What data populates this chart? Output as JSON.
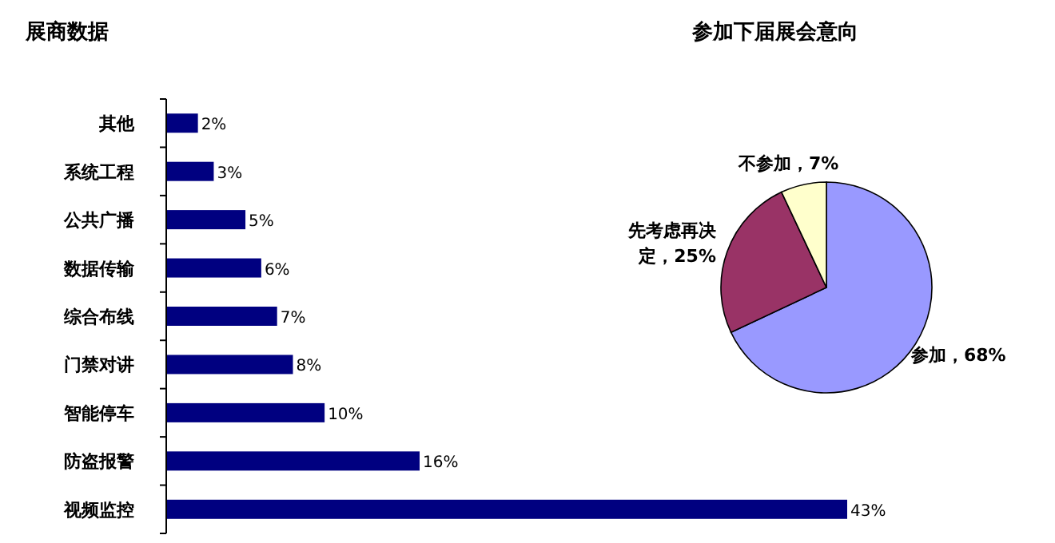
{
  "chart_data": [
    {
      "type": "bar",
      "orientation": "horizontal",
      "title": "展商数据",
      "categories": [
        "其他",
        "系统工程",
        "公共广播",
        "数据传输",
        "综合布线",
        "门禁对讲",
        "智能停车",
        "防盗报警",
        "视频监控"
      ],
      "values": [
        2,
        3,
        5,
        6,
        7,
        8,
        10,
        16,
        43
      ],
      "value_labels": [
        "2%",
        "3%",
        "5%",
        "6%",
        "7%",
        "8%",
        "10%",
        "16%",
        "43%"
      ],
      "color": "#000080"
    },
    {
      "type": "pie",
      "title": "参加下届展会意向",
      "categories": [
        "参加",
        "先考虑再决定",
        "不参加"
      ],
      "values": [
        68,
        25,
        7
      ],
      "value_labels": [
        "68%",
        "25%",
        "7%"
      ],
      "colors": [
        "#9999ff",
        "#993366",
        "#ffffcc"
      ]
    }
  ]
}
